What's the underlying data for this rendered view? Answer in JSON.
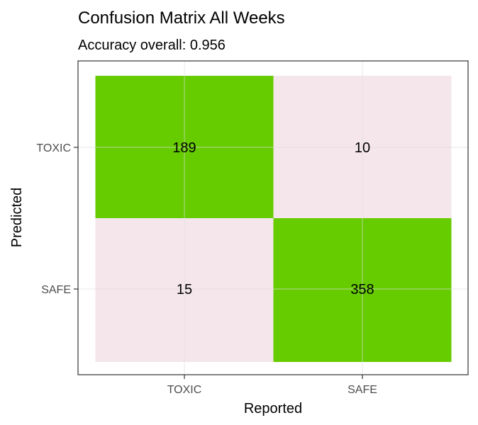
{
  "chart_data": {
    "type": "heatmap",
    "title": "Confusion Matrix All Weeks",
    "subtitle": "Accuracy overall: 0.956",
    "xlabel": "Reported",
    "ylabel": "Predicted",
    "x_categories": [
      "TOXIC",
      "SAFE"
    ],
    "y_categories": [
      "TOXIC",
      "SAFE"
    ],
    "cells": [
      {
        "x": "TOXIC",
        "y": "TOXIC",
        "value": 189,
        "label": "189",
        "color": "#66cc00"
      },
      {
        "x": "SAFE",
        "y": "TOXIC",
        "value": 10,
        "label": "10",
        "color": "#f5e6eb"
      },
      {
        "x": "TOXIC",
        "y": "SAFE",
        "value": 15,
        "label": "15",
        "color": "#f5e6eb"
      },
      {
        "x": "SAFE",
        "y": "SAFE",
        "value": 358,
        "label": "358",
        "color": "#66cc00"
      }
    ],
    "grid": true,
    "legend": "none"
  },
  "colors": {
    "correct": "#66cc00",
    "incorrect": "#f5e6eb",
    "panel_border": "#333333",
    "grid": "#dddddd"
  }
}
